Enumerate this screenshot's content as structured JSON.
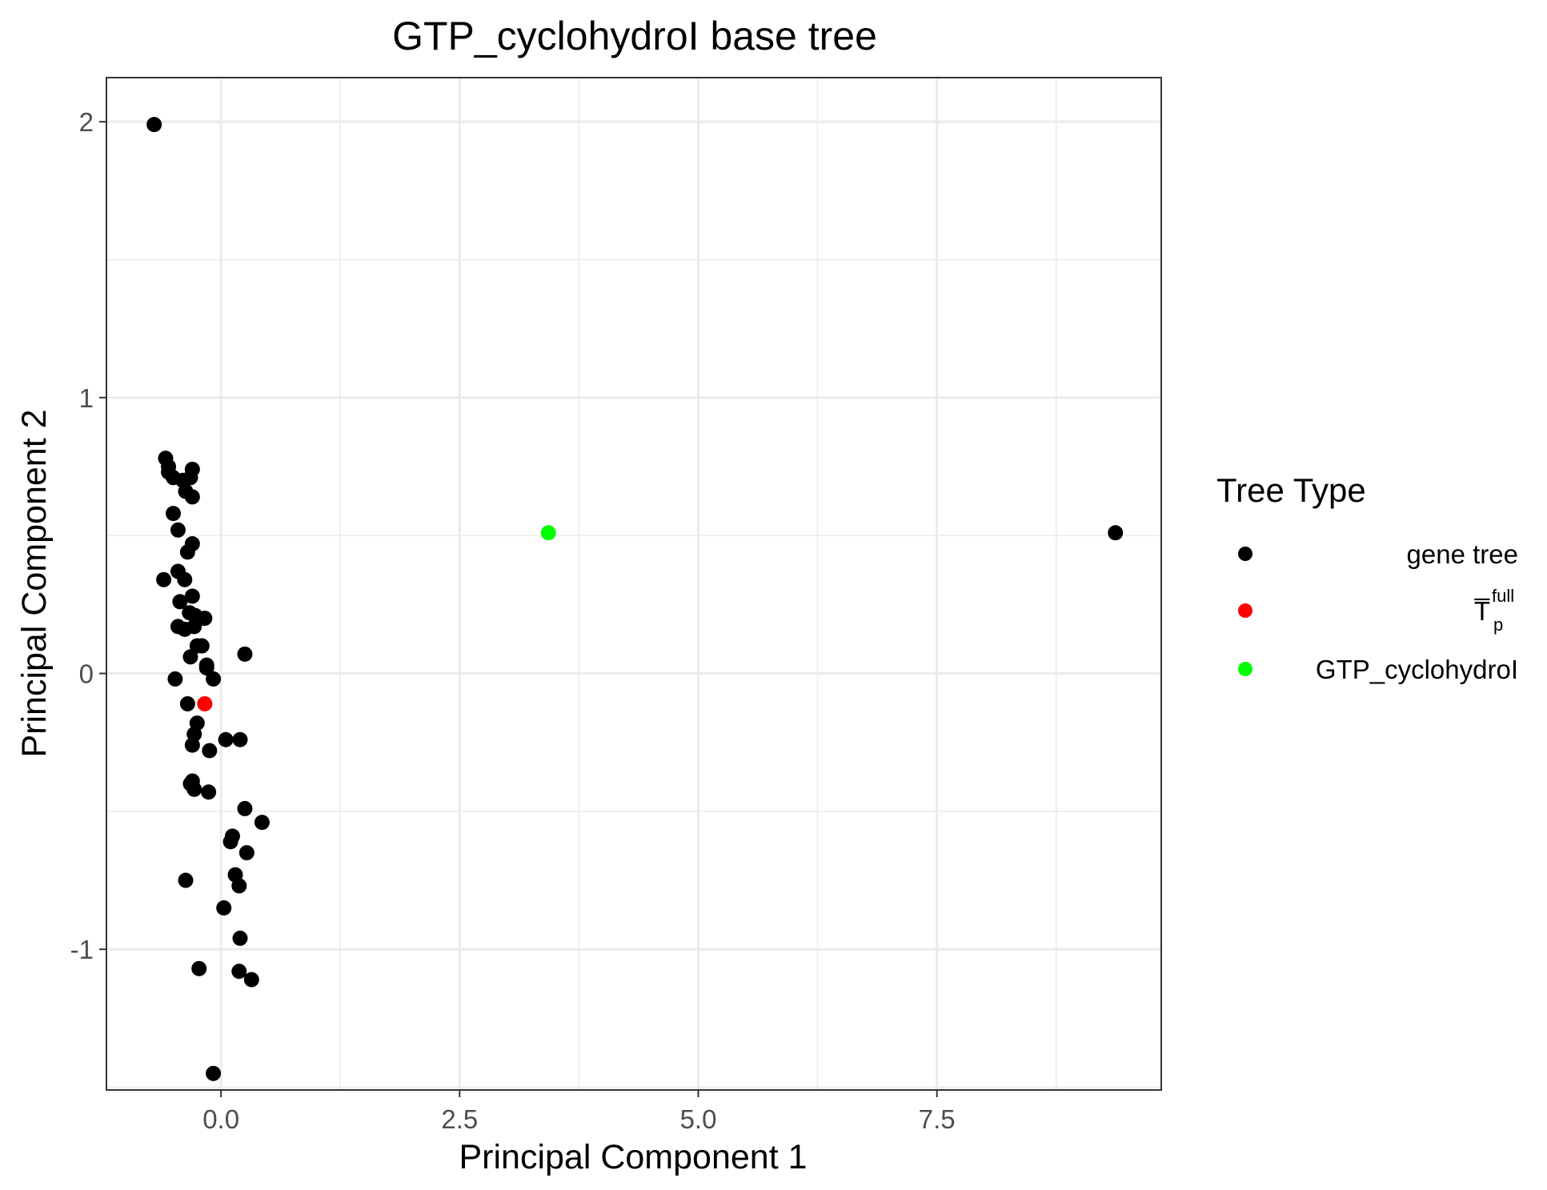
{
  "chart_data": {
    "type": "scatter",
    "title": "GTP_cyclohydroI base tree",
    "xlabel": "Principal Component 1",
    "ylabel": "Principal Component 2",
    "xlim": [
      -1.2,
      9.85
    ],
    "ylim": [
      -1.51,
      2.16
    ],
    "x_ticks": [
      0.0,
      2.5,
      5.0,
      7.5
    ],
    "x_tick_labels": [
      "0.0",
      "2.5",
      "5.0",
      "7.5"
    ],
    "y_ticks": [
      -1,
      0,
      1,
      2
    ],
    "y_tick_labels": [
      "-1",
      "0",
      "1",
      "2"
    ],
    "grid": true,
    "legend_position": "right",
    "legend_title": "Tree Type",
    "series": [
      {
        "name": "gene tree",
        "color": "#000000",
        "points": [
          [
            -0.7,
            1.99
          ],
          [
            9.37,
            0.51
          ],
          [
            -0.58,
            0.78
          ],
          [
            -0.55,
            0.75
          ],
          [
            -0.55,
            0.73
          ],
          [
            -0.5,
            0.71
          ],
          [
            -0.4,
            0.7
          ],
          [
            -0.3,
            0.74
          ],
          [
            -0.32,
            0.71
          ],
          [
            -0.37,
            0.66
          ],
          [
            -0.3,
            0.64
          ],
          [
            -0.5,
            0.58
          ],
          [
            -0.45,
            0.52
          ],
          [
            -0.3,
            0.47
          ],
          [
            -0.35,
            0.44
          ],
          [
            -0.45,
            0.37
          ],
          [
            -0.6,
            0.34
          ],
          [
            -0.38,
            0.34
          ],
          [
            -0.3,
            0.28
          ],
          [
            -0.43,
            0.26
          ],
          [
            -0.33,
            0.22
          ],
          [
            -0.27,
            0.21
          ],
          [
            -0.17,
            0.2
          ],
          [
            -0.45,
            0.17
          ],
          [
            -0.38,
            0.16
          ],
          [
            -0.28,
            0.17
          ],
          [
            -0.25,
            0.1
          ],
          [
            -0.2,
            0.1
          ],
          [
            0.25,
            0.07
          ],
          [
            -0.32,
            0.06
          ],
          [
            -0.15,
            0.03
          ],
          [
            -0.15,
            0.02
          ],
          [
            -0.08,
            -0.02
          ],
          [
            -0.48,
            -0.02
          ],
          [
            -0.35,
            -0.11
          ],
          [
            -0.25,
            -0.18
          ],
          [
            -0.28,
            -0.22
          ],
          [
            -0.3,
            -0.26
          ],
          [
            -0.12,
            -0.28
          ],
          [
            0.05,
            -0.24
          ],
          [
            0.2,
            -0.24
          ],
          [
            -0.3,
            -0.39
          ],
          [
            -0.32,
            -0.4
          ],
          [
            -0.28,
            -0.42
          ],
          [
            -0.13,
            -0.43
          ],
          [
            0.25,
            -0.49
          ],
          [
            0.43,
            -0.54
          ],
          [
            0.12,
            -0.59
          ],
          [
            0.1,
            -0.61
          ],
          [
            0.27,
            -0.65
          ],
          [
            -0.37,
            -0.75
          ],
          [
            0.15,
            -0.73
          ],
          [
            0.19,
            -0.77
          ],
          [
            0.03,
            -0.85
          ],
          [
            0.2,
            -0.96
          ],
          [
            -0.23,
            -1.07
          ],
          [
            0.19,
            -1.08
          ],
          [
            0.32,
            -1.11
          ],
          [
            -0.08,
            -1.45
          ]
        ]
      },
      {
        "name": "T̅_p^full",
        "color": "#ff0000",
        "points": [
          [
            -0.17,
            -0.11
          ]
        ]
      },
      {
        "name": "GTP_cyclohydroI",
        "color": "#00ff00",
        "points": [
          [
            3.43,
            0.51
          ]
        ]
      }
    ]
  },
  "legend": {
    "title": "Tree Type",
    "items": [
      {
        "label": "gene tree",
        "color": "#000000"
      },
      {
        "label": "T̅",
        "sup": "full",
        "sub": "p",
        "color": "#ff0000"
      },
      {
        "label": "GTP_cyclohydroI",
        "color": "#00ff00"
      }
    ]
  }
}
